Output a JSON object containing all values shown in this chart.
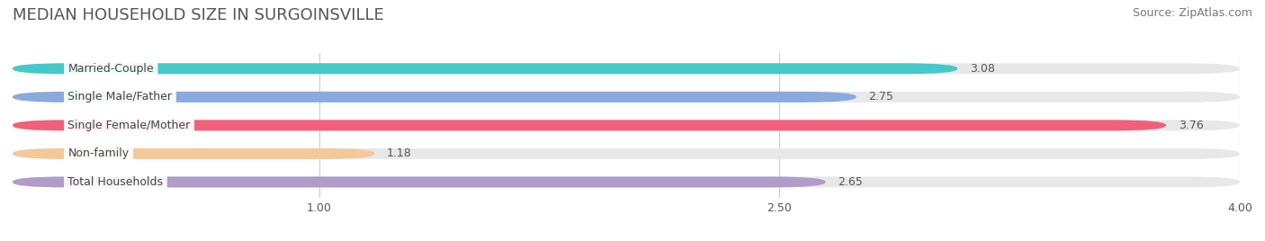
{
  "title": "MEDIAN HOUSEHOLD SIZE IN SURGOINSVILLE",
  "source": "Source: ZipAtlas.com",
  "categories": [
    "Married-Couple",
    "Single Male/Father",
    "Single Female/Mother",
    "Non-family",
    "Total Households"
  ],
  "values": [
    3.08,
    2.75,
    3.76,
    1.18,
    2.65
  ],
  "bar_colors": [
    "#45C8C8",
    "#8AAADE",
    "#F0607A",
    "#F5C89A",
    "#B09CC8"
  ],
  "xlim": [
    0,
    4.0
  ],
  "xticks": [
    1.0,
    2.5,
    4.0
  ],
  "background_color": "#ffffff",
  "bar_bg_color": "#e8e8e8",
  "title_fontsize": 13,
  "source_fontsize": 9,
  "label_fontsize": 9,
  "value_fontsize": 9
}
